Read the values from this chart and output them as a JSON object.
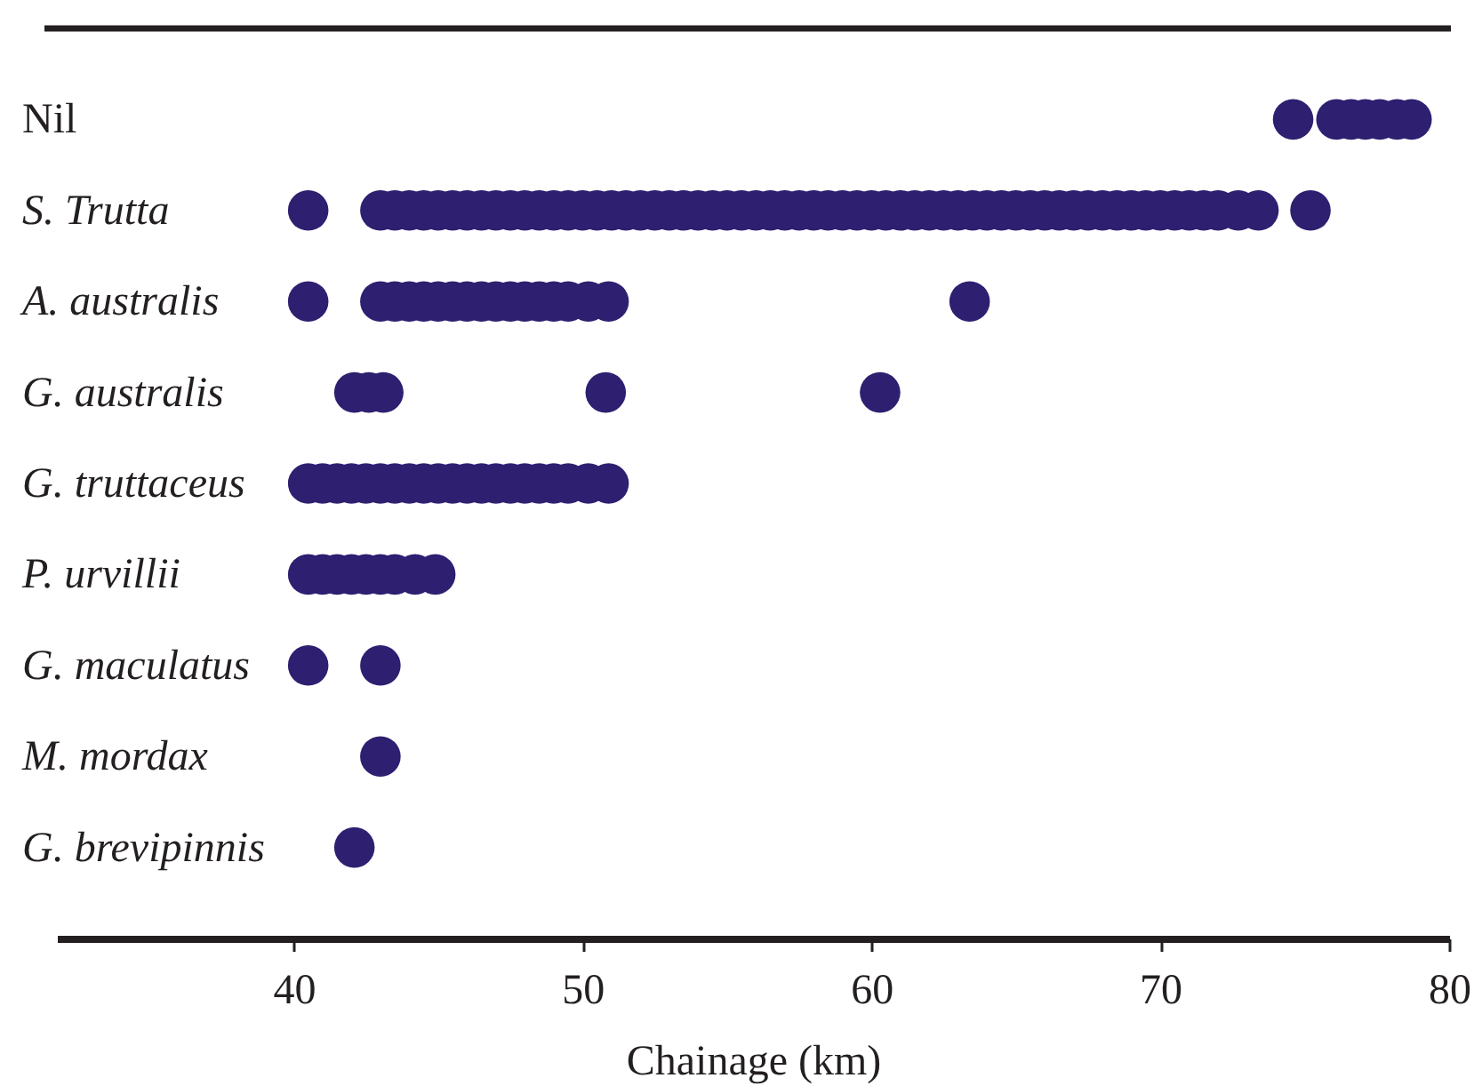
{
  "chart_data": {
    "type": "scatter",
    "orientation": "horizontal",
    "marker": "circle",
    "xlabel": "Chainage (km)",
    "xlim": [
      31.8,
      80
    ],
    "xticks": [
      40,
      50,
      60,
      70,
      80
    ],
    "categories": [
      "Nil",
      "S. Trutta",
      "A. australis",
      "G. australis",
      "G. truttaceus",
      "P. urvillii",
      "G. maculatus",
      "M. mordax",
      "G. brevipinnis"
    ],
    "series": [
      {
        "color": "#2e1f70",
        "x": [
          "Nil",
          "Nil",
          "Nil",
          "Nil",
          "Nil",
          "Nil",
          "Nil",
          "S. Trutta",
          "S. Trutta",
          "S. Trutta",
          "S. Trutta",
          "S. Trutta",
          "S. Trutta",
          "S. Trutta",
          "S. Trutta",
          "S. Trutta",
          "S. Trutta",
          "S. Trutta",
          "S. Trutta",
          "S. Trutta",
          "S. Trutta",
          "S. Trutta",
          "S. Trutta",
          "S. Trutta",
          "S. Trutta",
          "S. Trutta",
          "S. Trutta",
          "S. Trutta",
          "S. Trutta",
          "S. Trutta",
          "S. Trutta",
          "S. Trutta",
          "S. Trutta",
          "S. Trutta",
          "S. Trutta",
          "S. Trutta",
          "S. Trutta",
          "S. Trutta",
          "S. Trutta",
          "S. Trutta",
          "S. Trutta",
          "S. Trutta",
          "S. Trutta",
          "S. Trutta",
          "S. Trutta",
          "S. Trutta",
          "S. Trutta",
          "S. Trutta",
          "S. Trutta",
          "S. Trutta",
          "S. Trutta",
          "S. Trutta",
          "S. Trutta",
          "S. Trutta",
          "S. Trutta",
          "S. Trutta",
          "S. Trutta",
          "S. Trutta",
          "S. Trutta",
          "S. Trutta",
          "S. Trutta",
          "S. Trutta",
          "S. Trutta",
          "S. Trutta",
          "S. Trutta",
          "S. Trutta",
          "S. Trutta",
          "S. Trutta",
          "S. Trutta",
          "S. Trutta",
          "A. australis",
          "A. australis",
          "A. australis",
          "A. australis",
          "A. australis",
          "A. australis",
          "A. australis",
          "A. australis",
          "A. australis",
          "A. australis",
          "A. australis",
          "A. australis",
          "A. australis",
          "A. australis",
          "A. australis",
          "A. australis",
          "A. australis",
          "A. australis",
          "G. australis",
          "G. australis",
          "G. australis",
          "G. australis",
          "G. australis",
          "G. truttaceus",
          "G. truttaceus",
          "G. truttaceus",
          "G. truttaceus",
          "G. truttaceus",
          "G. truttaceus",
          "G. truttaceus",
          "G. truttaceus",
          "G. truttaceus",
          "G. truttaceus",
          "G. truttaceus",
          "G. truttaceus",
          "G. truttaceus",
          "G. truttaceus",
          "G. truttaceus",
          "G. truttaceus",
          "G. truttaceus",
          "G. truttaceus",
          "G. truttaceus",
          "G. truttaceus",
          "G. truttaceus",
          "P. urvillii",
          "P. urvillii",
          "P. urvillii",
          "P. urvillii",
          "P. urvillii",
          "P. urvillii",
          "P. urvillii",
          "P. urvillii",
          "P. urvillii",
          "G. maculatus",
          "G. maculatus",
          "M. mordax",
          "G. brevipinnis"
        ],
        "values": [
          74.6,
          76.1,
          76.6,
          77.1,
          77.6,
          78.2,
          78.7,
          40.5,
          43.0,
          43.5,
          44.0,
          44.5,
          45.0,
          45.5,
          46.0,
          46.5,
          47.0,
          47.5,
          48.0,
          48.5,
          49.0,
          49.5,
          50.0,
          50.5,
          51.0,
          51.5,
          52.0,
          52.5,
          53.0,
          53.5,
          54.0,
          54.5,
          55.0,
          55.5,
          56.0,
          56.5,
          57.0,
          57.5,
          58.0,
          58.5,
          59.0,
          59.5,
          60.0,
          60.5,
          61.0,
          61.5,
          62.0,
          62.5,
          63.0,
          63.5,
          64.0,
          64.5,
          65.0,
          65.5,
          66.0,
          66.5,
          67.0,
          67.5,
          68.0,
          68.5,
          69.0,
          69.5,
          70.0,
          70.5,
          71.0,
          71.5,
          72.0,
          72.7,
          73.4,
          75.2,
          40.5,
          43.0,
          43.5,
          44.0,
          44.5,
          45.0,
          45.5,
          46.0,
          46.5,
          47.0,
          47.5,
          48.0,
          48.5,
          49.0,
          49.5,
          50.2,
          50.9,
          63.4,
          42.1,
          42.6,
          43.1,
          50.8,
          60.3,
          40.5,
          41.0,
          41.5,
          42.0,
          42.5,
          43.0,
          43.5,
          44.0,
          44.5,
          45.0,
          45.5,
          46.0,
          46.5,
          47.0,
          47.5,
          48.0,
          48.5,
          49.0,
          49.5,
          50.2,
          50.9,
          40.5,
          41.0,
          41.5,
          42.0,
          42.5,
          43.0,
          43.5,
          44.2,
          44.9,
          40.5,
          43.0,
          43.0,
          42.1
        ]
      }
    ]
  }
}
